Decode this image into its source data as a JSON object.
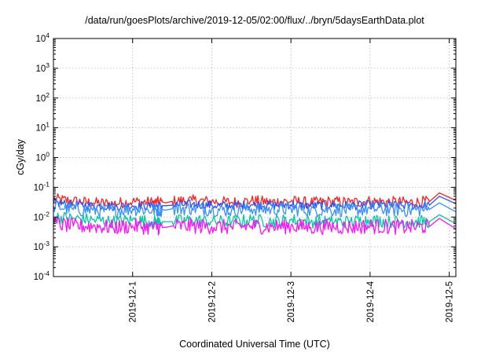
{
  "chart_data": {
    "type": "line",
    "title": "/data/run/goesPlots/archive/2019-12-05/02:00/flux/../bryn/5daysEarthData.plot",
    "xlabel": "Coordinated Universal Time (UTC)",
    "ylabel": "cGy/day",
    "yscale": "log",
    "ylim": [
      0.0001,
      10000
    ],
    "xlim": [
      "2019-11-30T00:00",
      "2019-12-05T02:00"
    ],
    "grid": true,
    "legend": "none",
    "x_ticks": [
      "2019-12-1",
      "2019-12-2",
      "2019-12-3",
      "2019-12-4",
      "2019-12-5"
    ],
    "y_ticks": [
      {
        "value": 0.0001,
        "base": "10",
        "exp": "-4"
      },
      {
        "value": 0.001,
        "base": "10",
        "exp": "-3"
      },
      {
        "value": 0.01,
        "base": "10",
        "exp": "-2"
      },
      {
        "value": 0.1,
        "base": "10",
        "exp": "-1"
      },
      {
        "value": 1,
        "base": "10",
        "exp": "0"
      },
      {
        "value": 10,
        "base": "10",
        "exp": "1"
      },
      {
        "value": 100,
        "base": "10",
        "exp": "2"
      },
      {
        "value": 1000,
        "base": "10",
        "exp": "3"
      },
      {
        "value": 10000,
        "base": "10",
        "exp": "4"
      }
    ],
    "series": [
      {
        "color": "#ff2020",
        "base_value": 0.032,
        "variability": 0.45
      },
      {
        "color": "#2255ff",
        "base_value": 0.025,
        "variability": 0.35
      },
      {
        "color": "#3a8fff",
        "base_value": 0.019,
        "variability": 0.55
      },
      {
        "color": "#00c8a0",
        "base_value": 0.0075,
        "variability": 0.5
      },
      {
        "color": "#ff10ff",
        "base_value": 0.0048,
        "variability": 0.6
      }
    ],
    "x": [
      "2019-11-30T00:00",
      "2019-11-30T06:00",
      "2019-11-30T12:00",
      "2019-11-30T18:00",
      "2019-12-01T00:00",
      "2019-12-01T06:00",
      "2019-12-01T09:00",
      "2019-12-01T10:00",
      "2019-12-01T12:00",
      "2019-12-01T18:00",
      "2019-12-02T00:00",
      "2019-12-02T06:00",
      "2019-12-02T12:00",
      "2019-12-02T18:00",
      "2019-12-03T00:00",
      "2019-12-03T06:00",
      "2019-12-03T12:00",
      "2019-12-03T18:00",
      "2019-12-04T00:00",
      "2019-12-04T06:00",
      "2019-12-04T12:00",
      "2019-12-04T18:00",
      "2019-12-04T21:00",
      "2019-12-05T02:00"
    ],
    "series_values": [
      [
        0.04,
        0.034,
        0.03,
        0.028,
        0.033,
        0.031,
        0.032,
        0.03,
        0.034,
        0.036,
        0.033,
        0.031,
        0.035,
        0.032,
        0.034,
        0.03,
        0.033,
        0.031,
        0.034,
        0.032,
        0.031,
        0.033,
        0.065,
        0.036
      ],
      [
        0.03,
        0.026,
        0.024,
        0.023,
        0.024,
        0.023,
        0.024,
        0.024,
        0.025,
        0.027,
        0.025,
        0.024,
        0.026,
        0.025,
        0.026,
        0.024,
        0.025,
        0.024,
        0.026,
        0.025,
        0.024,
        0.025,
        0.05,
        0.028
      ],
      [
        0.024,
        0.018,
        0.017,
        0.016,
        0.019,
        0.017,
        0.018,
        0.017,
        0.019,
        0.02,
        0.018,
        0.017,
        0.019,
        0.018,
        0.019,
        0.017,
        0.018,
        0.017,
        0.019,
        0.018,
        0.017,
        0.018,
        0.03,
        0.015
      ],
      [
        0.01,
        0.009,
        0.008,
        0.007,
        0.008,
        0.007,
        0.007,
        0.007,
        0.007,
        0.008,
        0.007,
        0.007,
        0.008,
        0.007,
        0.008,
        0.007,
        0.007,
        0.007,
        0.008,
        0.007,
        0.007,
        0.007,
        0.012,
        0.006
      ],
      [
        0.006,
        0.005,
        0.005,
        0.0045,
        0.005,
        0.0045,
        0.0045,
        0.0045,
        0.005,
        0.005,
        0.0048,
        0.0046,
        0.005,
        0.0047,
        0.005,
        0.0045,
        0.0048,
        0.0046,
        0.005,
        0.0047,
        0.0046,
        0.0048,
        0.009,
        0.004
      ]
    ]
  }
}
